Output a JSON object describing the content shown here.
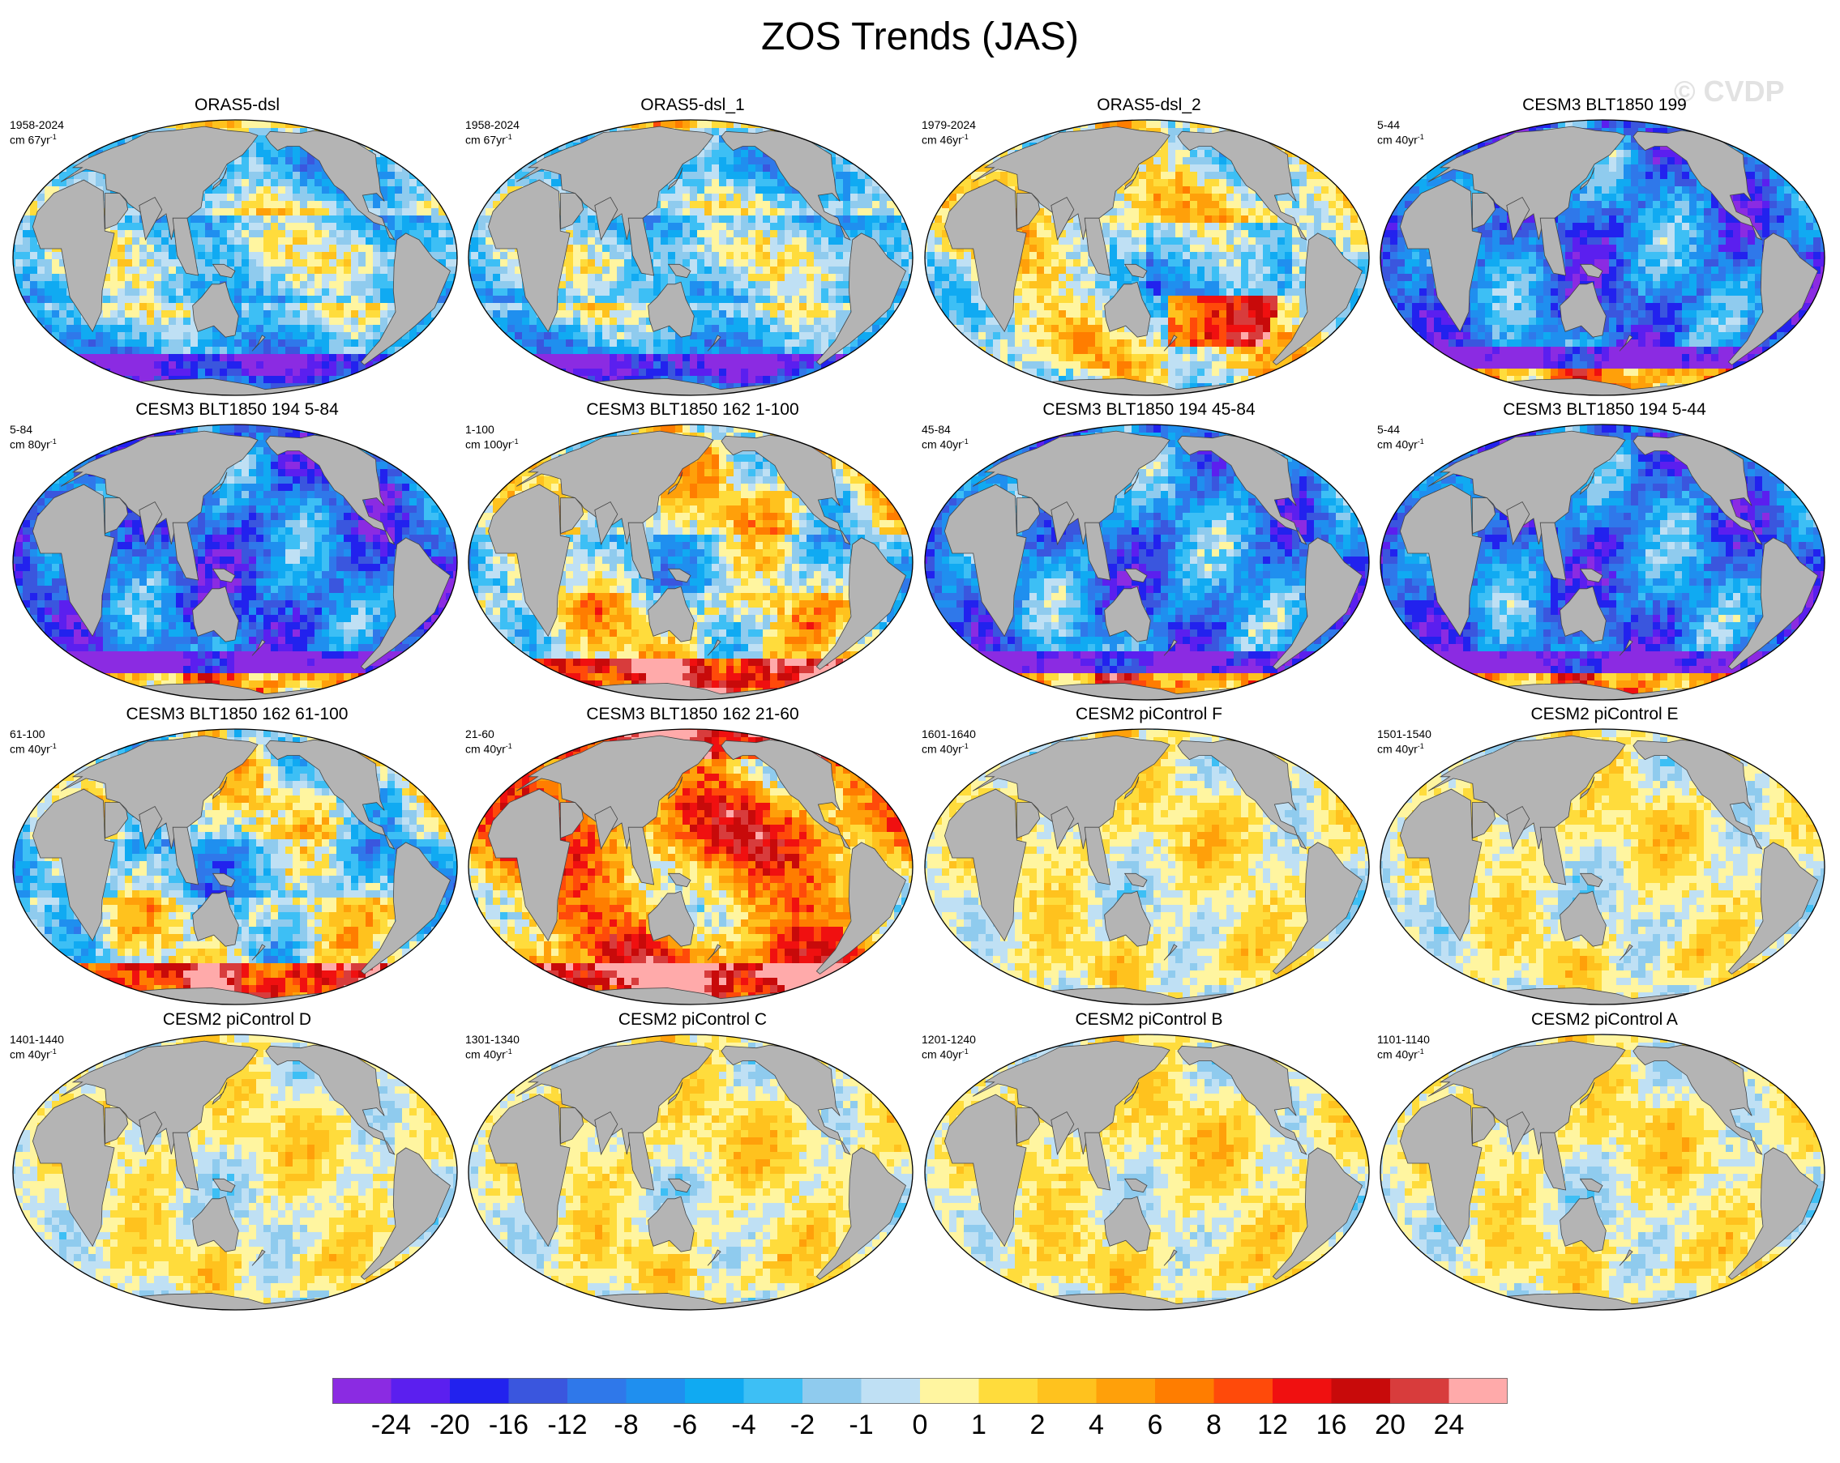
{
  "title": "ZOS Trends (JAS)",
  "watermark": "© CVDP",
  "panels": [
    {
      "title": "ORAS5-dsl",
      "period": "1958-2024",
      "units": "cm 67yr",
      "units_exp": "-1",
      "pattern": "obsA",
      "land_color": "#b4b4b4",
      "ocean_bias": -0.1
    },
    {
      "title": "ORAS5-dsl_1",
      "period": "1958-2024",
      "units": "cm 67yr",
      "units_exp": "-1",
      "pattern": "obsA",
      "land_color": "#b4b4b4",
      "ocean_bias": -0.1
    },
    {
      "title": "ORAS5-dsl_2",
      "period": "1979-2024",
      "units": "cm 46yr",
      "units_exp": "-1",
      "pattern": "obsB",
      "land_color": "#b4b4b4",
      "ocean_bias": 0.1
    },
    {
      "title": "CESM3 BLT1850 199",
      "period": "5-44",
      "units": "cm 40yr",
      "units_exp": "-1",
      "pattern": "modelBlue",
      "land_color": "#b4b4b4",
      "ocean_bias": -0.5
    },
    {
      "title": "CESM3 BLT1850 194 5-84",
      "period": "5-84",
      "units": "cm 80yr",
      "units_exp": "-1",
      "pattern": "modelBlue",
      "land_color": "#b4b4b4",
      "ocean_bias": -0.6
    },
    {
      "title": "CESM3 BLT1850 162 1-100",
      "period": "1-100",
      "units": "cm 100yr",
      "units_exp": "-1",
      "pattern": "modelMixed",
      "land_color": "#b4b4b4",
      "ocean_bias": 0.0
    },
    {
      "title": "CESM3 BLT1850 194 45-84",
      "period": "45-84",
      "units": "cm 40yr",
      "units_exp": "-1",
      "pattern": "modelBlue",
      "land_color": "#b4b4b4",
      "ocean_bias": -0.35
    },
    {
      "title": "CESM3 BLT1850 194 5-44",
      "period": "5-44",
      "units": "cm 40yr",
      "units_exp": "-1",
      "pattern": "modelBlue",
      "land_color": "#b4b4b4",
      "ocean_bias": -0.5
    },
    {
      "title": "CESM3 BLT1850 162 61-100",
      "period": "61-100",
      "units": "cm 40yr",
      "units_exp": "-1",
      "pattern": "modelMixed",
      "land_color": "#b4b4b4",
      "ocean_bias": -0.25
    },
    {
      "title": "CESM3 BLT1850 162 21-60",
      "period": "21-60",
      "units": "cm 40yr",
      "units_exp": "-1",
      "pattern": "modelWarm",
      "land_color": "#b4b4b4",
      "ocean_bias": 0.4
    },
    {
      "title": "CESM2 piControl F",
      "period": "1601-1640",
      "units": "cm 40yr",
      "units_exp": "-1",
      "pattern": "piControl",
      "land_color": "#b4b4b4",
      "ocean_bias": 0.05
    },
    {
      "title": "CESM2 piControl E",
      "period": "1501-1540",
      "units": "cm 40yr",
      "units_exp": "-1",
      "pattern": "piControl",
      "land_color": "#b4b4b4",
      "ocean_bias": 0.0
    },
    {
      "title": "CESM2 piControl D",
      "period": "1401-1440",
      "units": "cm 40yr",
      "units_exp": "-1",
      "pattern": "piControl",
      "land_color": "#b4b4b4",
      "ocean_bias": 0.0
    },
    {
      "title": "CESM2 piControl C",
      "period": "1301-1340",
      "units": "cm 40yr",
      "units_exp": "-1",
      "pattern": "piControl",
      "land_color": "#b4b4b4",
      "ocean_bias": 0.1
    },
    {
      "title": "CESM2 piControl B",
      "period": "1201-1240",
      "units": "cm 40yr",
      "units_exp": "-1",
      "pattern": "piControl",
      "land_color": "#b4b4b4",
      "ocean_bias": 0.15
    },
    {
      "title": "CESM2 piControl A",
      "period": "1101-1140",
      "units": "cm 40yr",
      "units_exp": "-1",
      "pattern": "piControl",
      "land_color": "#b4b4b4",
      "ocean_bias": 0.05
    }
  ],
  "colorbar": {
    "labels": [
      "-24",
      "-20",
      "-16",
      "-12",
      "-8",
      "-6",
      "-4",
      "-2",
      "-1",
      "0",
      "1",
      "2",
      "4",
      "6",
      "8",
      "12",
      "16",
      "20",
      "24"
    ],
    "colors": [
      "#8b2be2",
      "#5b1fef",
      "#2222ee",
      "#3a56de",
      "#2f78ea",
      "#1f8fef",
      "#10aaf2",
      "#3dbff5",
      "#8fcbee",
      "#bfe0f4",
      "#fff5a0",
      "#ffdc3c",
      "#ffc21e",
      "#ffa00a",
      "#ff7d00",
      "#ff4a0a",
      "#f01010",
      "#c80a0a",
      "#d83c3c",
      "#ffaaaa"
    ]
  }
}
